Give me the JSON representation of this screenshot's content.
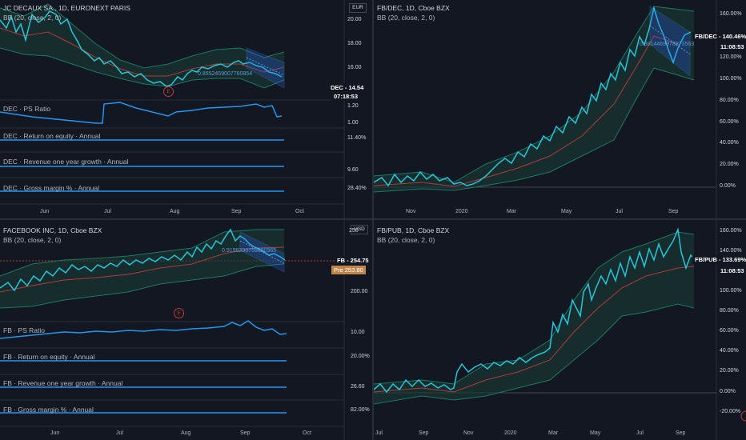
{
  "panels": {
    "jcdecaux": {
      "title": "JC DECAUX SA., 1D, EURONEXT PARIS",
      "indicator": "BB (20, close, 2, 0)",
      "currency": "EUR",
      "price_ticks": [
        "20.00",
        "18.00",
        "16.00"
      ],
      "price_tag": "DEC - 14.54",
      "countdown": "07:18:53",
      "regression_label": "0.8552459007760854",
      "event_marker": "E",
      "ps_ratio_label": "DEC · PS Ratio",
      "ps_ticks": [
        "1.20",
        "1.00"
      ],
      "roe_label": "DEC · Return on equity · Annual",
      "roe_value": "11.40%",
      "rev_label": "DEC · Revenue one year growth · Annual",
      "rev_value": "9.60",
      "gm_label": "DEC · Gross margin % · Annual",
      "gm_value": "28.40%",
      "x_labels": [
        "Jun",
        "Jul",
        "Aug",
        "Sep",
        "Oct"
      ]
    },
    "fbdec": {
      "title": "FB/DEC, 1D, Cboe BZX",
      "indicator": "BB (20, close, 2, 0)",
      "price_ticks": [
        "160.00%",
        "140.00%",
        "120.00%",
        "100.00%",
        "80.00%",
        "60.00%",
        "40.00%",
        "20.00%",
        "0.00%"
      ],
      "price_tag": "FB/DEC - 140.46%",
      "countdown": "11:08:53",
      "regression_label": "0.8814469978873563",
      "x_labels": [
        "Nov",
        "2020",
        "Mar",
        "May",
        "Jul",
        "Sep"
      ]
    },
    "facebook": {
      "title": "FACEBOOK INC, 1D, Cboe BZX",
      "indicator": "BB (20, close, 2, 0)",
      "currency": "USD",
      "price_ticks": [
        "250",
        "200.00"
      ],
      "price_tag": "FB - 254.75",
      "pre_tag": "253.80",
      "pre_label": "Pre",
      "regression_label": "0.9198298758800965",
      "event_marker": "E",
      "ps_ratio_label": "FB · PS Ratio",
      "ps_value": "10.00",
      "roe_label": "FB · Return on equity · Annual",
      "roe_value": "20.00%",
      "rev_label": "FB · Revenue one year growth · Annual",
      "rev_value": "26.60",
      "gm_label": "FB · Gross margin % · Annual",
      "gm_value": "82.00%",
      "x_labels": [
        "Jun",
        "Jul",
        "Aug",
        "Sep",
        "Oct"
      ]
    },
    "fbpub": {
      "title": "FB/PUB, 1D, Cboe BZX",
      "indicator": "BB (20, close, 2, 0)",
      "price_ticks": [
        "160.00%",
        "140.00%",
        "120.00%",
        "100.00%",
        "80.00%",
        "60.00%",
        "40.00%",
        "20.00%",
        "0.00%",
        "-20.00%"
      ],
      "price_tag": "FB/PUB - 133.69%",
      "countdown": "11:08:53",
      "x_labels": [
        "Jul",
        "Sep",
        "Nov",
        "2020",
        "Mar",
        "May",
        "Jul",
        "Sep"
      ]
    }
  },
  "colors": {
    "background": "#131722",
    "price_line": "#26c6da",
    "bb_band": "#1b5e4a",
    "bb_basis": "#b03a3a",
    "metric_line": "#2196f3",
    "channel": "#5b9bd5"
  }
}
